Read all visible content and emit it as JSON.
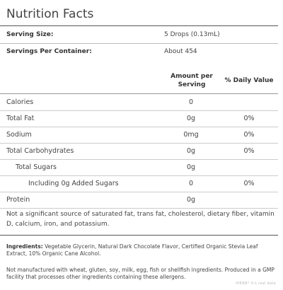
{
  "title": "Nutrition Facts",
  "serving_size": {
    "label": "Serving Size:",
    "value": "5 Drops (0.13mL)"
  },
  "servings_per_container": {
    "label": "Servings Per Container:",
    "value": "About 454"
  },
  "columns": {
    "amount": "Amount per Serving",
    "daily_value": "% Daily Value"
  },
  "rows": [
    {
      "name": "Calories",
      "amount": "0",
      "dv": ""
    },
    {
      "name": "Total Fat",
      "amount": "0g",
      "dv": "0%"
    },
    {
      "name": "Sodium",
      "amount": "0mg",
      "dv": "0%"
    },
    {
      "name": "Total Carbohydrates",
      "amount": "0g",
      "dv": "0%"
    },
    {
      "name": "Total Sugars",
      "amount": "0g",
      "dv": ""
    },
    {
      "name": "Including 0g Added Sugars",
      "amount": "0",
      "dv": "0%"
    },
    {
      "name": "Protein",
      "amount": "0g",
      "dv": ""
    }
  ],
  "footnote": "Not a significant source of saturated fat, trans fat, cholesterol, dietary fiber, vitamin D, calcium, iron, and potassium.",
  "ingredients": {
    "label": "Ingredients:",
    "text": " Vegetable Glycerin, Natural Dark Chocolate Flavor, Certified Organic Stevia Leaf Extract, 10% Organic Cane Alcohol."
  },
  "allergen_statement": "Not manufactured with wheat, gluten, soy, milk, egg, fish or shellfish ingredients. Produced in a GMP facility that processes other ingredients containing these allergens.",
  "watermark": "iHERB* It's real data"
}
